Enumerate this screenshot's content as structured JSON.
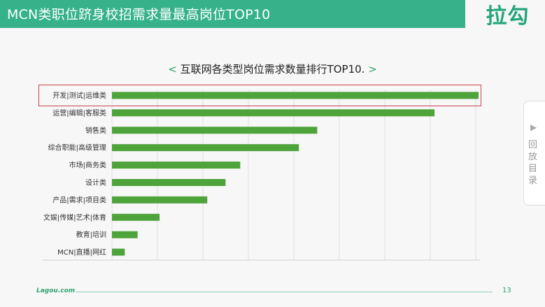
{
  "header": {
    "title": "MCN类职位跻身校招需求量最高岗位TOP10"
  },
  "logo": {
    "text": "拉勾"
  },
  "chart_title": {
    "left": "<",
    "text": "互联网各类型岗位需求数量排行TOP10.",
    "right": ">"
  },
  "side_tab": {
    "label": "回放目录"
  },
  "footer": {
    "brand": "Lagou.com",
    "page": "13"
  },
  "colors": {
    "header": "#35b28a",
    "bar": "#4ea33a",
    "highlight": "#c9404a",
    "accent": "#2ea36f"
  },
  "chart_data": {
    "type": "bar",
    "orientation": "horizontal",
    "title": "互联网各类型岗位需求数量排行TOP10.",
    "categories": [
      "开发|测试|运维类",
      "运营|编辑|客服类",
      "销售类",
      "综合职能|高级管理",
      "市场|商务类",
      "设计类",
      "产品|需求|项目类",
      "文娱|传媒|艺术|体育",
      "教育|培训",
      "MCN|直播|网红"
    ],
    "values": [
      100,
      88,
      56,
      51,
      35,
      31,
      26,
      13,
      7,
      3.5
    ],
    "xlim": [
      0,
      100
    ],
    "grid": true,
    "highlighted": "开发|测试|运维类"
  }
}
